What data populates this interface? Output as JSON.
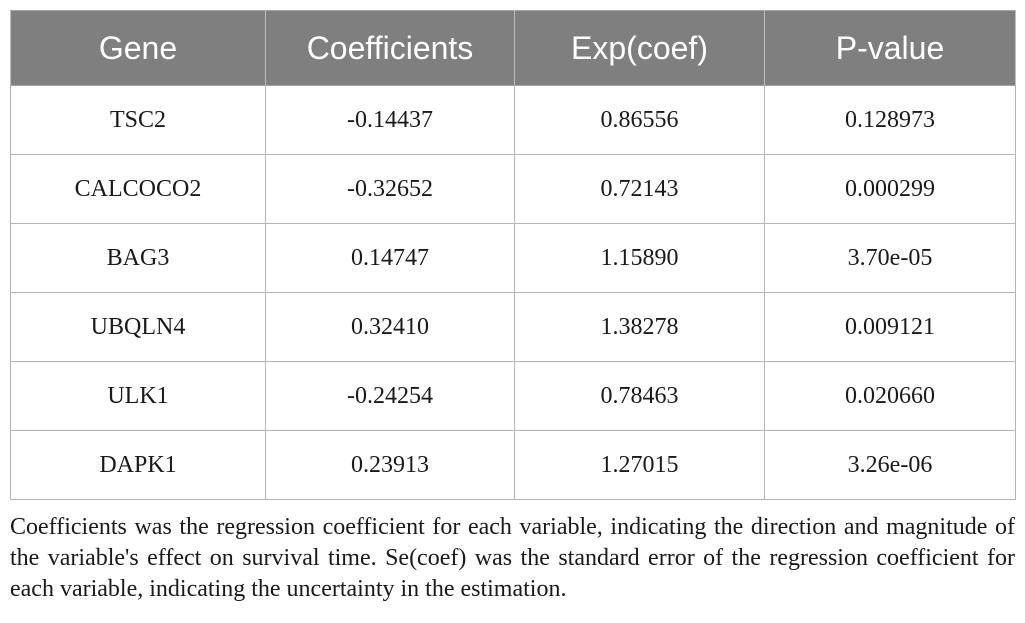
{
  "table": {
    "headers": [
      "Gene",
      "Coefficients",
      "Exp(coef)",
      "P-value"
    ],
    "rows": [
      [
        "TSC2",
        "-0.14437",
        "0.86556",
        "0.128973"
      ],
      [
        "CALCOCO2",
        "-0.32652",
        "0.72143",
        "0.000299"
      ],
      [
        "BAG3",
        "0.14747",
        "1.15890",
        "3.70e-05"
      ],
      [
        "UBQLN4",
        "0.32410",
        "1.38278",
        "0.009121"
      ],
      [
        "ULK1",
        "-0.24254",
        "0.78463",
        "0.020660"
      ],
      [
        "DAPK1",
        "0.23913",
        "1.27015",
        "3.26e-06"
      ]
    ]
  },
  "caption": "Coefficients was the regression coefficient for each variable, indicating the direction and magnitude of the variable's effect on survival time. Se(coef) was the standard error of the regression coefficient for each variable, indicating the uncertainty in the estimation."
}
